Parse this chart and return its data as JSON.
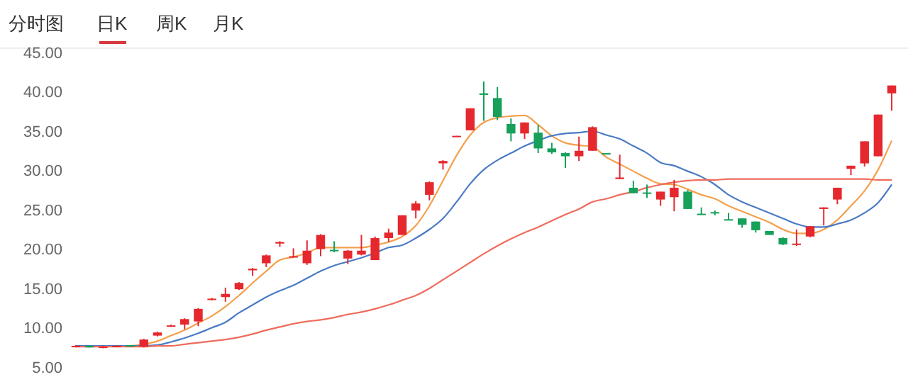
{
  "chart_data": {
    "type": "candlestick",
    "annotations": [
      "分时图",
      "日K",
      "周K",
      "月K"
    ],
    "categories": [
      null,
      null,
      null,
      null,
      null,
      null,
      null,
      null,
      null,
      null,
      null,
      null,
      null,
      null,
      null,
      null,
      null,
      null,
      null,
      null,
      null,
      null,
      null,
      null,
      null,
      null,
      null,
      null,
      null,
      null,
      null,
      null,
      null,
      null,
      null,
      null,
      null,
      null,
      null,
      null,
      null,
      null,
      null,
      null,
      null,
      null,
      null,
      null,
      null,
      null,
      null,
      null,
      null,
      null,
      null,
      null,
      null,
      null,
      null,
      null,
      null
    ],
    "ohlc": [
      [
        7.6,
        7.8,
        7.5,
        7.7
      ],
      [
        7.7,
        7.8,
        7.5,
        7.5
      ],
      [
        7.5,
        7.7,
        7.4,
        7.6
      ],
      [
        7.6,
        7.8,
        7.6,
        7.7
      ],
      [
        7.8,
        7.8,
        7.6,
        7.6
      ],
      [
        7.6,
        8.6,
        7.5,
        8.5
      ],
      [
        9.0,
        9.5,
        8.9,
        9.4
      ],
      [
        10.2,
        10.4,
        10.2,
        10.3
      ],
      [
        10.4,
        11.2,
        9.8,
        11.1
      ],
      [
        10.8,
        12.5,
        10.2,
        12.4
      ],
      [
        13.6,
        13.8,
        13.5,
        13.7
      ],
      [
        13.9,
        15.1,
        13.3,
        14.3
      ],
      [
        14.9,
        15.8,
        14.8,
        15.7
      ],
      [
        17.3,
        17.6,
        16.6,
        17.5
      ],
      [
        18.2,
        19.3,
        17.7,
        19.2
      ],
      [
        20.7,
        21.0,
        20.3,
        20.9
      ],
      [
        19.0,
        20.1,
        18.9,
        19.1
      ],
      [
        18.2,
        21.1,
        18.0,
        19.8
      ],
      [
        20.0,
        21.9,
        19.1,
        21.8
      ],
      [
        19.9,
        21.0,
        19.6,
        19.8
      ],
      [
        18.8,
        19.9,
        18.1,
        19.8
      ],
      [
        19.3,
        21.8,
        19.2,
        19.8
      ],
      [
        18.6,
        21.6,
        18.6,
        21.4
      ],
      [
        21.4,
        22.6,
        20.9,
        22.1
      ],
      [
        21.8,
        24.3,
        21.8,
        24.3
      ],
      [
        24.9,
        26.1,
        23.9,
        25.8
      ],
      [
        26.9,
        28.6,
        26.2,
        28.5
      ],
      [
        30.9,
        31.3,
        30.1,
        31.2
      ],
      [
        34.3,
        34.4,
        34.3,
        34.4
      ],
      [
        35.1,
        37.9,
        35.1,
        37.9
      ],
      [
        39.8,
        41.3,
        36.3,
        39.6
      ],
      [
        39.2,
        40.6,
        36.4,
        36.8
      ],
      [
        35.9,
        36.6,
        33.7,
        34.7
      ],
      [
        34.7,
        36.1,
        34.0,
        36.1
      ],
      [
        34.8,
        35.8,
        32.2,
        32.8
      ],
      [
        32.8,
        33.5,
        32.1,
        32.3
      ],
      [
        32.2,
        32.3,
        30.3,
        31.8
      ],
      [
        31.8,
        34.3,
        31.2,
        32.5
      ],
      [
        32.5,
        35.6,
        32.5,
        35.5
      ],
      [
        32.2,
        32.2,
        32.1,
        32.1
      ],
      [
        28.9,
        32.0,
        28.9,
        29.1
      ],
      [
        27.8,
        28.7,
        27.1,
        27.1
      ],
      [
        27.2,
        28.2,
        26.5,
        27.1
      ],
      [
        26.3,
        27.3,
        25.5,
        27.3
      ],
      [
        26.6,
        28.8,
        24.8,
        27.8
      ],
      [
        27.3,
        27.5,
        25.1,
        25.1
      ],
      [
        24.5,
        25.3,
        24.4,
        24.4
      ],
      [
        24.7,
        24.9,
        24.3,
        24.6
      ],
      [
        23.8,
        24.6,
        23.7,
        23.7
      ],
      [
        23.9,
        23.9,
        22.7,
        23.1
      ],
      [
        23.5,
        23.5,
        22.1,
        22.4
      ],
      [
        22.3,
        22.3,
        21.8,
        21.8
      ],
      [
        21.4,
        21.5,
        20.5,
        20.6
      ],
      [
        20.6,
        22.5,
        20.4,
        20.7
      ],
      [
        21.6,
        22.9,
        21.5,
        22.9
      ],
      [
        25.1,
        25.3,
        23.0,
        25.3
      ],
      [
        26.3,
        27.8,
        25.7,
        27.8
      ],
      [
        30.2,
        30.6,
        29.4,
        30.6
      ],
      [
        30.9,
        33.7,
        30.5,
        33.7
      ],
      [
        31.8,
        37.1,
        31.8,
        37.1
      ],
      [
        39.8,
        40.8,
        37.6,
        40.8
      ]
    ],
    "colors": [
      "#e5282e",
      "#16a05a",
      "#e5282e",
      "#e5282e",
      "#16a05a",
      "#e5282e",
      "#e5282e",
      "#e5282e",
      "#e5282e",
      "#e5282e",
      "#e5282e",
      "#e5282e",
      "#e5282e",
      "#e5282e",
      "#e5282e",
      "#e5282e",
      "#e5282e",
      "#e5282e",
      "#e5282e",
      "#16a05a",
      "#e5282e",
      "#e5282e",
      "#e5282e",
      "#e5282e",
      "#e5282e",
      "#e5282e",
      "#e5282e",
      "#e5282e",
      "#e5282e",
      "#e5282e",
      "#16a05a",
      "#16a05a",
      "#16a05a",
      "#e5282e",
      "#16a05a",
      "#16a05a",
      "#16a05a",
      "#e5282e",
      "#e5282e",
      "#16a05a",
      "#e5282e",
      "#16a05a",
      "#16a05a",
      "#e5282e",
      "#e5282e",
      "#16a05a",
      "#16a05a",
      "#16a05a",
      "#16a05a",
      "#16a05a",
      "#16a05a",
      "#16a05a",
      "#16a05a",
      "#e5282e",
      "#e5282e",
      "#e5282e",
      "#e5282e",
      "#e5282e",
      "#e5282e",
      "#e5282e",
      "#e5282e"
    ],
    "series": [
      {
        "type": "line",
        "color": "#f4a04c",
        "values": [
          null,
          null,
          null,
          7.7,
          7.7,
          7.9,
          8.3,
          9.0,
          9.7,
          10.6,
          11.5,
          12.7,
          14.1,
          15.7,
          17.2,
          18.6,
          19.0,
          19.5,
          20.2,
          20.2,
          20.2,
          20.2,
          20.5,
          20.9,
          21.6,
          23.0,
          25.5,
          28.7,
          31.9,
          34.5,
          36.1,
          36.7,
          36.9,
          37.0,
          35.8,
          34.4,
          33.5,
          33.2,
          33.0,
          31.7,
          30.8,
          29.9,
          29.0,
          28.3,
          28.2,
          27.6,
          26.9,
          26.4,
          25.5,
          24.8,
          24.1,
          23.4,
          22.5,
          22.0,
          22.0,
          22.5,
          23.7,
          25.5,
          27.4,
          30.1,
          33.8
        ]
      },
      {
        "type": "line",
        "color": "#4a7bc4",
        "values": [
          7.7,
          7.7,
          7.7,
          7.7,
          7.7,
          7.7,
          7.8,
          8.2,
          8.7,
          9.3,
          10.0,
          10.7,
          11.9,
          12.9,
          13.9,
          14.7,
          15.4,
          16.3,
          17.2,
          17.9,
          18.4,
          18.9,
          19.5,
          20.2,
          20.5,
          21.4,
          22.5,
          23.9,
          26.0,
          28.3,
          30.1,
          31.3,
          32.2,
          33.1,
          33.8,
          34.4,
          34.7,
          34.8,
          35.0,
          34.5,
          34.0,
          33.1,
          32.2,
          31.0,
          30.6,
          29.9,
          29.2,
          28.2,
          26.9,
          26.0,
          25.3,
          24.6,
          23.9,
          23.2,
          22.8,
          22.8,
          23.2,
          23.7,
          24.6,
          25.9,
          28.2
        ]
      },
      {
        "type": "line",
        "color": "#ef6b5c",
        "values": [
          7.6,
          7.6,
          7.6,
          7.6,
          7.6,
          7.6,
          7.7,
          7.7,
          7.9,
          8.1,
          8.3,
          8.5,
          8.8,
          9.2,
          9.7,
          10.1,
          10.5,
          10.8,
          11.0,
          11.3,
          11.7,
          12.0,
          12.4,
          12.9,
          13.5,
          14.1,
          15.0,
          16.1,
          17.2,
          18.3,
          19.4,
          20.4,
          21.3,
          22.1,
          22.8,
          23.6,
          24.4,
          25.1,
          26.0,
          26.4,
          26.9,
          27.3,
          27.8,
          28.2,
          28.5,
          28.7,
          28.8,
          28.8,
          28.9,
          28.9,
          28.9,
          28.9,
          28.9,
          28.9,
          28.9,
          28.9,
          28.9,
          28.9,
          28.9,
          28.8,
          28.8
        ]
      }
    ],
    "ylim": [
      5,
      45
    ],
    "yticks": [
      {
        "value": 45,
        "label": "45.00"
      },
      {
        "value": 40,
        "label": "40.00"
      },
      {
        "value": 35,
        "label": "35.00"
      },
      {
        "value": 30,
        "label": "30.00"
      },
      {
        "value": 25,
        "label": "25.00"
      },
      {
        "value": 20,
        "label": "20.00"
      },
      {
        "value": 15,
        "label": "15.00"
      },
      {
        "value": 10,
        "label": "10.00"
      },
      {
        "value": 5,
        "label": "5.00"
      }
    ]
  }
}
